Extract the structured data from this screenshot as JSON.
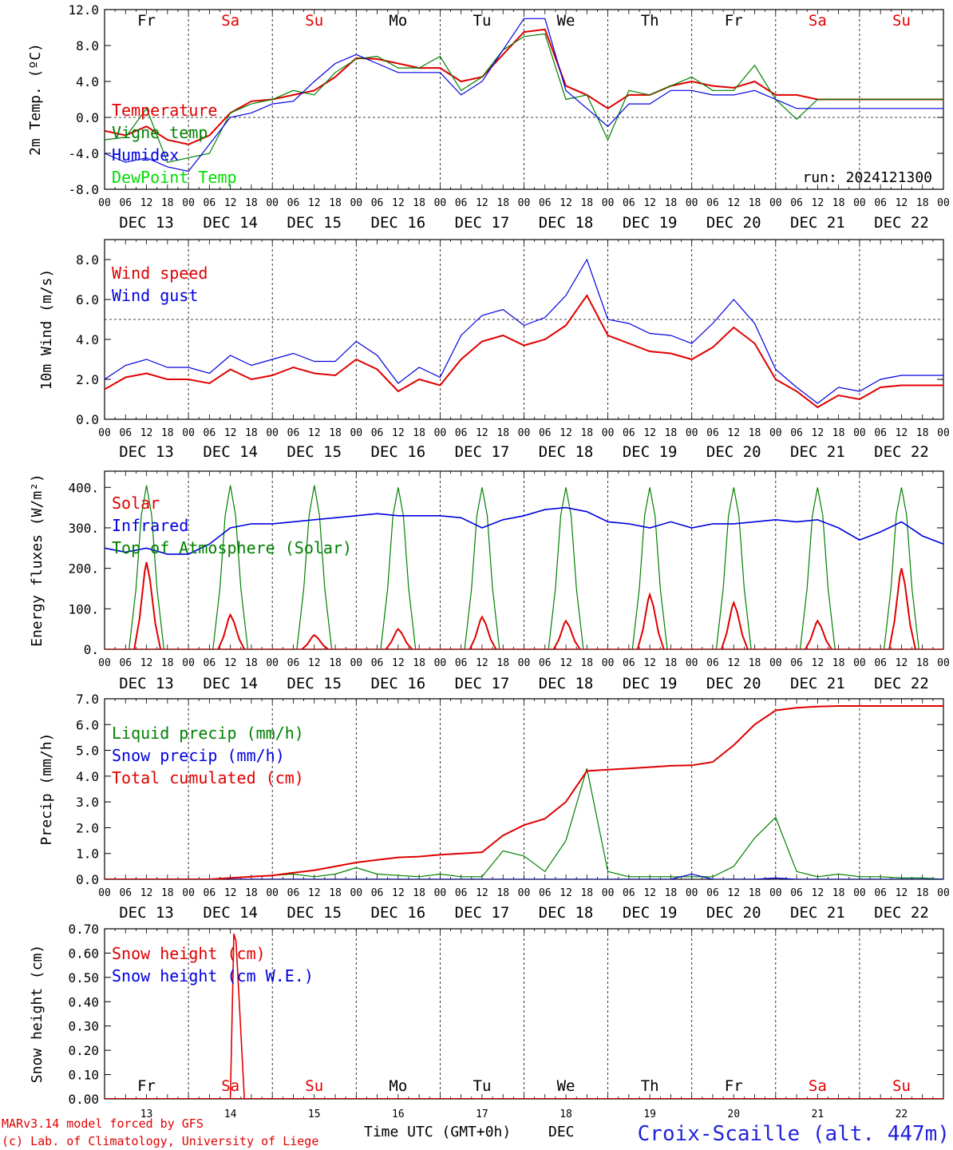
{
  "days_top": [
    "Fr",
    "Sa",
    "Su",
    "Mo",
    "Tu",
    "We",
    "Th",
    "Fr",
    "Sa",
    "Su"
  ],
  "days_bottom": [
    "Fr",
    "Sa",
    "Su",
    "Mo",
    "Tu",
    "We",
    "Th",
    "Fr",
    "Sa",
    "Su"
  ],
  "day_colors": [
    "#000000",
    "#e00000",
    "#e00000",
    "#000000",
    "#000000",
    "#000000",
    "#000000",
    "#000000",
    "#e00000",
    "#e00000"
  ],
  "date_labels": [
    "DEC 13",
    "DEC 14",
    "DEC 15",
    "DEC 16",
    "DEC 17",
    "DEC 18",
    "DEC 19",
    "DEC 20",
    "DEC 21",
    "DEC 22"
  ],
  "hour_ticks": [
    "00",
    "06",
    "12",
    "18"
  ],
  "bottom_day_numbers": [
    "13",
    "14",
    "15",
    "16",
    "17",
    "18",
    "19",
    "20",
    "21",
    "22"
  ],
  "run_label": "run: 2024121300",
  "footer": {
    "model": "MARv3.14 model forced by GFS",
    "copyright": "(c) Lab. of Climatology, University of Liege",
    "xlabel": "Time UTC (GMT+0h)",
    "month": "DEC",
    "station": "Croix-Scaille (alt. 447m)"
  },
  "colors": {
    "red": "#e00000",
    "green": "#008000",
    "blue": "#0000e0",
    "lightgreen": "#00dd00"
  },
  "chart_data": [
    {
      "type": "line",
      "ylabel": "2m Temp. (ºC)",
      "ylim": [
        -8,
        12
      ],
      "yticks": [
        "12.0",
        "8.0",
        "4.0",
        "0.0",
        "-4.0",
        "-8.0"
      ],
      "ytick_values": [
        12,
        8,
        4,
        0,
        -4,
        -8
      ],
      "ref_line": 0,
      "x_hours": [
        0,
        6,
        12,
        18,
        24,
        30,
        36,
        42,
        48,
        54,
        60,
        66,
        72,
        78,
        84,
        90,
        96,
        102,
        108,
        114,
        120,
        126,
        132,
        138,
        144,
        150,
        156,
        162,
        168,
        174,
        180,
        186,
        192,
        198,
        204,
        210,
        216,
        222,
        228,
        234,
        240
      ],
      "series": [
        {
          "name": "Temperature",
          "color": "#e00000",
          "values": [
            -1.5,
            -2.0,
            -1.0,
            -2.5,
            -3.0,
            -2.0,
            0.5,
            1.8,
            2.0,
            2.5,
            3.0,
            4.5,
            6.6,
            6.5,
            6.0,
            5.5,
            5.5,
            4.0,
            4.5,
            7.0,
            9.5,
            9.8,
            3.5,
            2.5,
            1.0,
            2.5,
            2.5,
            3.5,
            4.0,
            3.5,
            3.3,
            4.0,
            2.5,
            2.5,
            2.0,
            2.0,
            2.0,
            2.0,
            2.0,
            2.0,
            2.0
          ]
        },
        {
          "name": "Vigne temp",
          "color": "#008000",
          "values": [
            -2.5,
            -2.2,
            1.0,
            -5.0,
            -4.5,
            -4.0,
            0.5,
            1.5,
            2.0,
            3.0,
            2.5,
            5.0,
            6.5,
            6.8,
            5.5,
            5.5,
            6.8,
            3.0,
            4.5,
            7.5,
            9.0,
            9.3,
            2.0,
            2.5,
            -2.5,
            3.0,
            2.5,
            3.5,
            4.5,
            3.0,
            3.0,
            5.8,
            2.0,
            -0.2,
            2.0,
            2.0,
            2.0,
            2.0,
            2.0,
            2.0,
            2.0
          ]
        },
        {
          "name": "Humidex",
          "color": "#0000e0",
          "values": [
            -4.0,
            -5.0,
            -4.5,
            -5.5,
            -6.0,
            -3.0,
            0.0,
            0.5,
            1.5,
            1.8,
            4.0,
            6.0,
            7.0,
            6.0,
            5.0,
            5.0,
            5.0,
            2.5,
            4.0,
            7.5,
            11.0,
            11.0,
            3.0,
            1.0,
            -1.0,
            1.5,
            1.5,
            3.0,
            3.0,
            2.5,
            2.5,
            3.0,
            2.0,
            1.0,
            1.0,
            1.0,
            1.0,
            1.0,
            1.0,
            1.0,
            1.0
          ]
        },
        {
          "name": "DewPoint Temp",
          "color": "#00dd00",
          "values": []
        }
      ]
    },
    {
      "type": "line",
      "ylabel": "10m Wind (m/s)",
      "ylim": [
        0,
        9
      ],
      "yticks": [
        "8.0",
        "6.0",
        "4.0",
        "2.0",
        "0.0"
      ],
      "ytick_values": [
        8,
        6,
        4,
        2,
        0
      ],
      "ref_line": 5,
      "x_hours": [
        0,
        6,
        12,
        18,
        24,
        30,
        36,
        42,
        48,
        54,
        60,
        66,
        72,
        78,
        84,
        90,
        96,
        102,
        108,
        114,
        120,
        126,
        132,
        138,
        144,
        150,
        156,
        162,
        168,
        174,
        180,
        186,
        192,
        198,
        204,
        210,
        216,
        222,
        228,
        234,
        240
      ],
      "series": [
        {
          "name": "Wind speed",
          "color": "#e00000",
          "values": [
            1.5,
            2.1,
            2.3,
            2.0,
            2.0,
            1.8,
            2.5,
            2.0,
            2.2,
            2.6,
            2.3,
            2.2,
            3.0,
            2.5,
            1.4,
            2.0,
            1.7,
            3.0,
            3.9,
            4.2,
            3.7,
            4.0,
            4.7,
            6.2,
            4.2,
            3.8,
            3.4,
            3.3,
            3.0,
            3.6,
            4.6,
            3.8,
            2.0,
            1.4,
            0.6,
            1.2,
            1.0,
            1.6,
            1.7,
            1.7,
            1.7
          ]
        },
        {
          "name": "Wind gust",
          "color": "#0000e0",
          "values": [
            2.0,
            2.7,
            3.0,
            2.6,
            2.6,
            2.3,
            3.2,
            2.7,
            3.0,
            3.3,
            2.9,
            2.9,
            3.9,
            3.2,
            1.8,
            2.6,
            2.1,
            4.2,
            5.2,
            5.5,
            4.7,
            5.1,
            6.2,
            8.0,
            5.0,
            4.8,
            4.3,
            4.2,
            3.8,
            4.8,
            6.0,
            4.8,
            2.5,
            1.6,
            0.8,
            1.6,
            1.4,
            2.0,
            2.2,
            2.2,
            2.2
          ]
        }
      ]
    },
    {
      "type": "line",
      "ylabel": "Energy fluxes (W/m²)",
      "ylim": [
        0,
        440
      ],
      "yticks": [
        "400.",
        "300.",
        "200.",
        "100.",
        "0."
      ],
      "ytick_values": [
        400,
        300,
        200,
        100,
        0
      ],
      "daily_peaks": {
        "Solar": [
          215,
          85,
          35,
          50,
          80,
          70,
          135,
          115,
          70,
          200
        ],
        "Top of Atmosphere (Solar)": [
          405,
          405,
          405,
          400,
          400,
          400,
          400,
          400,
          400,
          400
        ]
      },
      "x_hours_infrared": [
        0,
        6,
        12,
        18,
        24,
        30,
        36,
        42,
        48,
        54,
        60,
        66,
        72,
        78,
        84,
        90,
        96,
        102,
        108,
        114,
        120,
        126,
        132,
        138,
        144,
        150,
        156,
        162,
        168,
        174,
        180,
        186,
        192,
        198,
        204,
        210,
        216,
        222,
        228,
        234,
        240
      ],
      "series": [
        {
          "name": "Solar",
          "color": "#e00000"
        },
        {
          "name": "Infrared",
          "color": "#0000e0",
          "values": [
            250,
            240,
            250,
            235,
            235,
            260,
            300,
            310,
            310,
            315,
            320,
            325,
            330,
            335,
            330,
            330,
            330,
            325,
            300,
            320,
            330,
            345,
            350,
            340,
            315,
            310,
            300,
            315,
            300,
            310,
            310,
            315,
            320,
            315,
            320,
            300,
            270,
            290,
            315,
            280,
            260
          ]
        },
        {
          "name": "Top of Atmosphere (Solar)",
          "color": "#008000"
        }
      ]
    },
    {
      "type": "line",
      "ylabel": "Precip (mm/h)",
      "ylim": [
        0,
        7
      ],
      "yticks": [
        "7.0",
        "6.0",
        "5.0",
        "4.0",
        "3.0",
        "2.0",
        "1.0",
        "0.0"
      ],
      "ytick_values": [
        7,
        6,
        5,
        4,
        3,
        2,
        1,
        0
      ],
      "x_hours": [
        0,
        6,
        12,
        18,
        24,
        30,
        36,
        42,
        48,
        54,
        60,
        66,
        72,
        78,
        84,
        90,
        96,
        102,
        108,
        114,
        120,
        126,
        132,
        138,
        144,
        150,
        156,
        162,
        168,
        174,
        180,
        186,
        192,
        198,
        204,
        210,
        216,
        222,
        228,
        234,
        240
      ],
      "series": [
        {
          "name": "Liquid precip (mm/h)",
          "color": "#008000",
          "values": [
            0,
            0,
            0,
            0,
            0,
            0,
            0.05,
            0.1,
            0.15,
            0.2,
            0.1,
            0.2,
            0.45,
            0.2,
            0.15,
            0.1,
            0.2,
            0.1,
            0.1,
            1.1,
            0.9,
            0.3,
            1.5,
            4.3,
            0.3,
            0.1,
            0.1,
            0.1,
            0.1,
            0.1,
            0.5,
            1.6,
            2.4,
            0.3,
            0.1,
            0.2,
            0.1,
            0.1,
            0.05,
            0.05,
            0
          ]
        },
        {
          "name": "Snow precip (mm/h)",
          "color": "#0000e0",
          "values": [
            0,
            0,
            0,
            0,
            0,
            0,
            0,
            0,
            0,
            0,
            0,
            0,
            0,
            0,
            0,
            0,
            0,
            0,
            0,
            0,
            0,
            0,
            0,
            0,
            0,
            0,
            0,
            0,
            0.2,
            0,
            0,
            0,
            0.05,
            0,
            0,
            0,
            0,
            0,
            0,
            0,
            0
          ]
        },
        {
          "name": "Total cumulated (cm)",
          "color": "#e00000",
          "values": [
            0,
            0,
            0,
            0,
            0,
            0,
            0.05,
            0.1,
            0.15,
            0.25,
            0.35,
            0.5,
            0.65,
            0.75,
            0.85,
            0.88,
            0.95,
            1.0,
            1.05,
            1.7,
            2.1,
            2.35,
            3.0,
            4.2,
            4.25,
            4.3,
            4.35,
            4.4,
            4.42,
            4.55,
            5.2,
            6.0,
            6.55,
            6.65,
            6.7,
            6.72,
            6.72,
            6.72,
            6.72,
            6.72,
            6.72
          ]
        }
      ]
    },
    {
      "type": "line",
      "ylabel": "Snow height (cm)",
      "ylim": [
        0,
        0.7
      ],
      "yticks": [
        "0.70",
        "0.60",
        "0.50",
        "0.40",
        "0.30",
        "0.20",
        "0.10",
        "0.00"
      ],
      "ytick_values": [
        0.7,
        0.6,
        0.5,
        0.4,
        0.3,
        0.2,
        0.1,
        0
      ],
      "spike": {
        "start_hour": 36,
        "peak_hour": 37,
        "peak_value": 0.68,
        "end_hour": 40
      },
      "series": [
        {
          "name": "Snow height (cm)",
          "color": "#e00000"
        },
        {
          "name": "Snow height (cm W.E.)",
          "color": "#0000e0"
        }
      ]
    }
  ]
}
